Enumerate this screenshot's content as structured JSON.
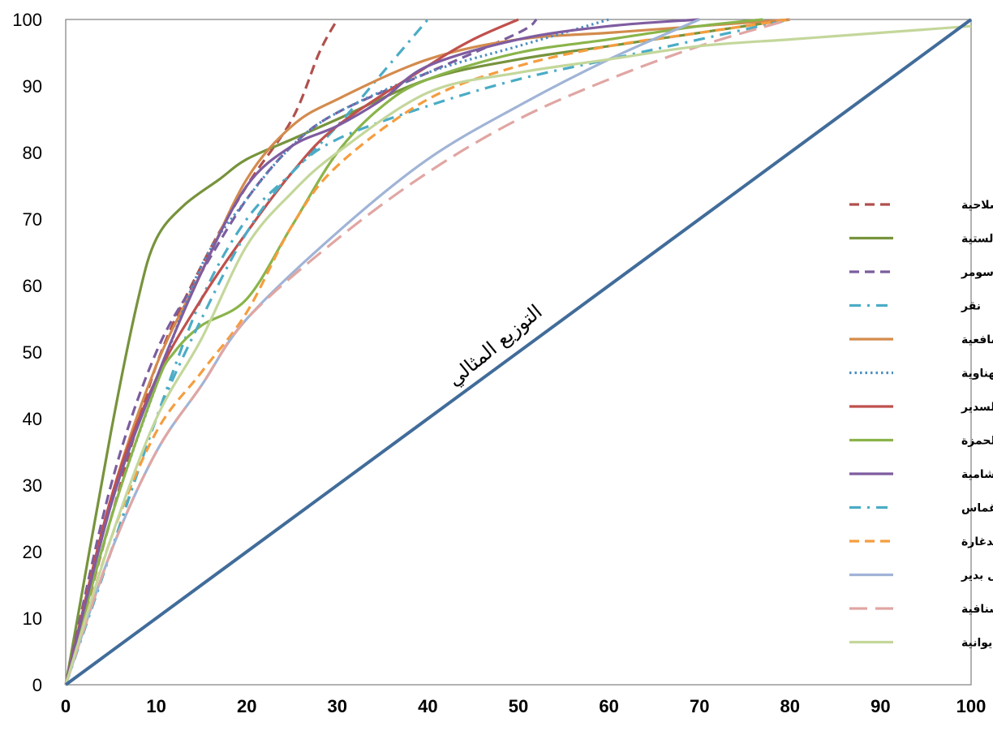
{
  "chart_data": {
    "type": "line",
    "xlim": [
      0,
      100
    ],
    "ylim": [
      0,
      100
    ],
    "x_ticks": [
      "0",
      "10",
      "20",
      "30",
      "40",
      "50",
      "60",
      "70",
      "80",
      "90",
      "100"
    ],
    "y_ticks": [
      "0",
      "10",
      "20",
      "30",
      "40",
      "50",
      "60",
      "70",
      "80",
      "90",
      "100"
    ],
    "grid": false,
    "legend_position": "right",
    "annotation": "التوزيع المثالي",
    "series": [
      {
        "name": "الصلاحية",
        "color": "#B0504D",
        "dash": "dash",
        "points": [
          [
            0,
            0
          ],
          [
            5,
            25
          ],
          [
            10,
            48
          ],
          [
            15,
            63
          ],
          [
            20,
            75
          ],
          [
            25,
            85
          ],
          [
            28,
            95
          ],
          [
            30,
            100
          ]
        ]
      },
      {
        "name": "الستية",
        "color": "#77933C",
        "dash": "solid",
        "points": [
          [
            0,
            0
          ],
          [
            5,
            38
          ],
          [
            8,
            58
          ],
          [
            10,
            67
          ],
          [
            13,
            72
          ],
          [
            17,
            76
          ],
          [
            20,
            79
          ],
          [
            25,
            82
          ],
          [
            30,
            85
          ],
          [
            40,
            91
          ],
          [
            50,
            94
          ],
          [
            60,
            96
          ],
          [
            70,
            98
          ],
          [
            80,
            100
          ]
        ]
      },
      {
        "name": "سومر",
        "color": "#7A5D9E",
        "dash": "dash",
        "points": [
          [
            0,
            0
          ],
          [
            5,
            30
          ],
          [
            10,
            50
          ],
          [
            15,
            62
          ],
          [
            20,
            73
          ],
          [
            25,
            81
          ],
          [
            30,
            86
          ],
          [
            40,
            92
          ],
          [
            50,
            98
          ],
          [
            52,
            100
          ]
        ]
      },
      {
        "name": "نقر",
        "color": "#4BACC6",
        "dash": "dashdot",
        "points": [
          [
            0,
            0
          ],
          [
            5,
            20
          ],
          [
            10,
            40
          ],
          [
            15,
            58
          ],
          [
            20,
            70
          ],
          [
            25,
            77
          ],
          [
            30,
            84
          ],
          [
            35,
            92
          ],
          [
            40,
            100
          ]
        ]
      },
      {
        "name": "الشافعية",
        "color": "#D38B4D",
        "dash": "solid",
        "points": [
          [
            0,
            0
          ],
          [
            5,
            28
          ],
          [
            10,
            48
          ],
          [
            15,
            62
          ],
          [
            20,
            76
          ],
          [
            25,
            84
          ],
          [
            30,
            88
          ],
          [
            40,
            94
          ],
          [
            50,
            97
          ],
          [
            60,
            98
          ],
          [
            70,
            99
          ],
          [
            80,
            100
          ]
        ]
      },
      {
        "name": "المهناوية",
        "color": "#4E8FC0",
        "dash": "dot",
        "points": [
          [
            0,
            0
          ],
          [
            5,
            25
          ],
          [
            10,
            45
          ],
          [
            15,
            63
          ],
          [
            20,
            73
          ],
          [
            25,
            81
          ],
          [
            30,
            86
          ],
          [
            40,
            92
          ],
          [
            50,
            96
          ],
          [
            60,
            100
          ]
        ]
      },
      {
        "name": "السدير",
        "color": "#C0504D",
        "dash": "solid",
        "points": [
          [
            0,
            0
          ],
          [
            5,
            28
          ],
          [
            10,
            46
          ],
          [
            15,
            58
          ],
          [
            20,
            68
          ],
          [
            25,
            77
          ],
          [
            30,
            84
          ],
          [
            40,
            93
          ],
          [
            45,
            97
          ],
          [
            50,
            100
          ]
        ]
      },
      {
        "name": "الحمزة",
        "color": "#8AB44A",
        "dash": "solid",
        "points": [
          [
            0,
            0
          ],
          [
            5,
            25
          ],
          [
            10,
            45
          ],
          [
            12,
            50
          ],
          [
            15,
            54
          ],
          [
            20,
            58
          ],
          [
            25,
            69
          ],
          [
            30,
            80
          ],
          [
            35,
            87
          ],
          [
            40,
            91
          ],
          [
            50,
            95
          ],
          [
            60,
            97
          ],
          [
            70,
            99
          ],
          [
            77,
            100
          ]
        ]
      },
      {
        "name": "الشامية",
        "color": "#7F5CA0",
        "dash": "solid",
        "points": [
          [
            0,
            0
          ],
          [
            5,
            27
          ],
          [
            10,
            46
          ],
          [
            15,
            62
          ],
          [
            20,
            75
          ],
          [
            25,
            81
          ],
          [
            30,
            84
          ],
          [
            35,
            88
          ],
          [
            40,
            93
          ],
          [
            50,
            97
          ],
          [
            60,
            99
          ],
          [
            70,
            100
          ]
        ]
      },
      {
        "name": "غماس",
        "color": "#4BACC6",
        "dash": "dashdot",
        "points": [
          [
            0,
            0
          ],
          [
            5,
            20
          ],
          [
            10,
            40
          ],
          [
            15,
            55
          ],
          [
            20,
            68
          ],
          [
            25,
            77
          ],
          [
            30,
            82
          ],
          [
            40,
            87
          ],
          [
            50,
            91
          ],
          [
            60,
            94
          ],
          [
            70,
            97
          ],
          [
            80,
            100
          ]
        ]
      },
      {
        "name": "الدغارة",
        "color": "#F59D3F",
        "dash": "dash",
        "points": [
          [
            0,
            0
          ],
          [
            5,
            22
          ],
          [
            10,
            38
          ],
          [
            15,
            47
          ],
          [
            20,
            56
          ],
          [
            25,
            69
          ],
          [
            30,
            78
          ],
          [
            40,
            88
          ],
          [
            50,
            93
          ],
          [
            60,
            96
          ],
          [
            70,
            98
          ],
          [
            80,
            100
          ]
        ]
      },
      {
        "name": "ال بدير",
        "color": "#A0B4D6",
        "dash": "solid",
        "points": [
          [
            0,
            0
          ],
          [
            5,
            20
          ],
          [
            10,
            35
          ],
          [
            15,
            45
          ],
          [
            20,
            55
          ],
          [
            30,
            68
          ],
          [
            40,
            79
          ],
          [
            50,
            87
          ],
          [
            60,
            94
          ],
          [
            70,
            100
          ]
        ]
      },
      {
        "name": "الشنافية",
        "color": "#E0A6A3",
        "dash": "longdash",
        "points": [
          [
            0,
            0
          ],
          [
            5,
            20
          ],
          [
            10,
            35
          ],
          [
            15,
            45
          ],
          [
            20,
            55
          ],
          [
            30,
            67
          ],
          [
            40,
            77
          ],
          [
            50,
            85
          ],
          [
            60,
            91
          ],
          [
            70,
            96
          ],
          [
            80,
            100
          ]
        ]
      },
      {
        "name": "الديوانية",
        "color": "#C4D79B",
        "dash": "solid",
        "points": [
          [
            0,
            0
          ],
          [
            5,
            22
          ],
          [
            10,
            40
          ],
          [
            15,
            52
          ],
          [
            20,
            66
          ],
          [
            25,
            74
          ],
          [
            30,
            80
          ],
          [
            40,
            89
          ],
          [
            50,
            92
          ],
          [
            60,
            94
          ],
          [
            70,
            96
          ],
          [
            80,
            97
          ],
          [
            90,
            98
          ],
          [
            100,
            99
          ]
        ]
      },
      {
        "name": "التوزيع المثالي",
        "color": "#416C9A",
        "dash": "solid",
        "legend": false,
        "points": [
          [
            0,
            0
          ],
          [
            100,
            100
          ]
        ]
      }
    ]
  }
}
